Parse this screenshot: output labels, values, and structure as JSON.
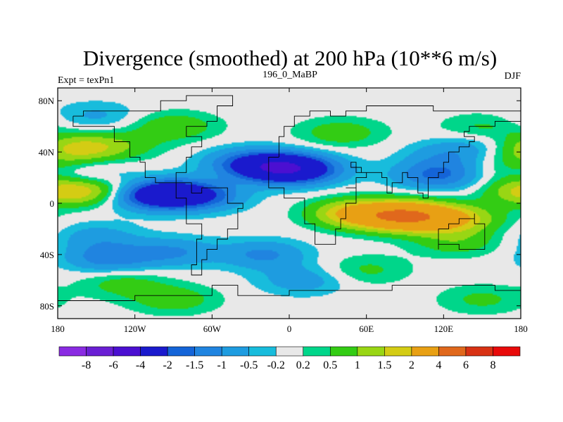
{
  "chart_data": {
    "type": "heatmap",
    "title": "Divergence (smoothed) at 200 hPa (10**6 m/s)",
    "left_subtitle": "Expt = texPn1",
    "center_subtitle": "196_0_MaBP",
    "right_subtitle": "DJF",
    "x_range": [
      -180,
      180
    ],
    "y_range": [
      -90,
      90
    ],
    "x_ticks": [
      {
        "value": -180,
        "label": "180"
      },
      {
        "value": -120,
        "label": "120W"
      },
      {
        "value": -60,
        "label": "60W"
      },
      {
        "value": 0,
        "label": "0"
      },
      {
        "value": 60,
        "label": "60E"
      },
      {
        "value": 120,
        "label": "120E"
      },
      {
        "value": 180,
        "label": "180"
      }
    ],
    "y_ticks": [
      {
        "value": 80,
        "label": "80N"
      },
      {
        "value": 40,
        "label": "40N"
      },
      {
        "value": 0,
        "label": "0"
      },
      {
        "value": -40,
        "label": "40S"
      },
      {
        "value": -80,
        "label": "80S"
      }
    ],
    "contour_levels": [
      -8,
      -6,
      -4,
      -2,
      -1.5,
      -1,
      -0.5,
      -0.2,
      0.2,
      0.5,
      1,
      1.5,
      2,
      4,
      6,
      8
    ],
    "colorbar_labels": [
      "-8",
      "-6",
      "-4",
      "-2",
      "-1.5",
      "-1",
      "-0.5",
      "-0.2",
      "0.2",
      "0.5",
      "1",
      "1.5",
      "2",
      "4",
      "6",
      "8"
    ],
    "colorbar_colors": [
      "#8a2be2",
      "#6a1fd4",
      "#4b0fd1",
      "#1a1acd",
      "#1464d8",
      "#2084e0",
      "#1e9ce0",
      "#18bcdc",
      "#e8e8e8",
      "#00d68a",
      "#33cc14",
      "#99d614",
      "#d4cc14",
      "#e8a014",
      "#e0681c",
      "#d83214",
      "#e80a0a"
    ],
    "field_features": [
      {
        "lon": -100,
        "lat": 7,
        "value": -2.4
      },
      {
        "lon": -115,
        "lat": 8,
        "value": -1.6
      },
      {
        "lon": -70,
        "lat": 6,
        "value": -1.7
      },
      {
        "lon": -10,
        "lat": 28,
        "value": -2.8
      },
      {
        "lon": 10,
        "lat": 26,
        "value": -1.8
      },
      {
        "lon": -35,
        "lat": 32,
        "value": -1.1
      },
      {
        "lon": 115,
        "lat": 22,
        "value": -1.6
      },
      {
        "lon": 125,
        "lat": 38,
        "value": -0.8
      },
      {
        "lon": -160,
        "lat": 22,
        "value": -0.9
      },
      {
        "lon": -150,
        "lat": 68,
        "value": -0.6
      },
      {
        "lon": 150,
        "lat": 48,
        "value": -0.5
      },
      {
        "lon": 90,
        "lat": -10,
        "value": 3.8
      },
      {
        "lon": 50,
        "lat": -8,
        "value": 2.0
      },
      {
        "lon": 130,
        "lat": -12,
        "value": 1.7
      },
      {
        "lon": -170,
        "lat": 10,
        "value": 2.1
      },
      {
        "lon": -125,
        "lat": 10,
        "value": 1.4
      },
      {
        "lon": -165,
        "lat": 43,
        "value": 1.6
      },
      {
        "lon": -130,
        "lat": 45,
        "value": 0.6
      },
      {
        "lon": -90,
        "lat": 60,
        "value": 0.9
      },
      {
        "lon": 40,
        "lat": 55,
        "value": 0.8
      },
      {
        "lon": 150,
        "lat": 58,
        "value": 0.7
      },
      {
        "lon": 175,
        "lat": 28,
        "value": 0.7
      },
      {
        "lon": -140,
        "lat": -43,
        "value": -1.3
      },
      {
        "lon": -90,
        "lat": -38,
        "value": -1.0
      },
      {
        "lon": -150,
        "lat": -26,
        "value": -0.7
      },
      {
        "lon": -20,
        "lat": -40,
        "value": -1.1
      },
      {
        "lon": 10,
        "lat": -60,
        "value": -0.8
      },
      {
        "lon": 130,
        "lat": -30,
        "value": 0.8
      },
      {
        "lon": -90,
        "lat": -75,
        "value": 0.8
      },
      {
        "lon": 150,
        "lat": -75,
        "value": 0.6
      },
      {
        "lon": -130,
        "lat": -62,
        "value": 0.7
      },
      {
        "lon": 60,
        "lat": -52,
        "value": 0.6
      }
    ]
  }
}
